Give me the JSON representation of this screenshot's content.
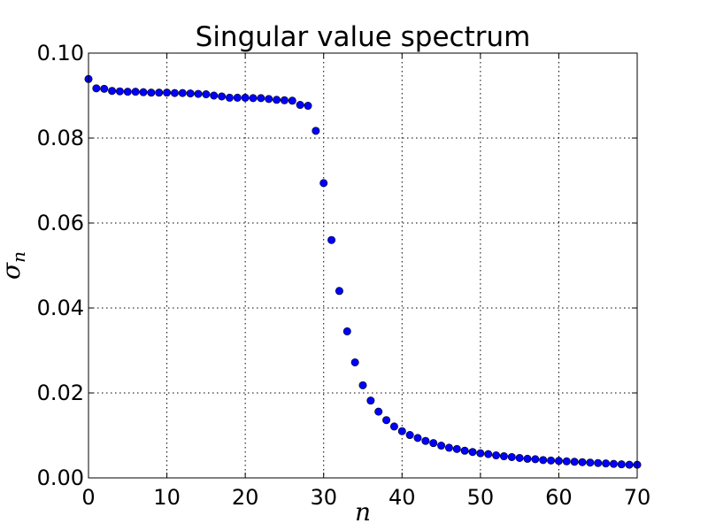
{
  "chart_data": {
    "type": "scatter",
    "title": "Singular value spectrum",
    "xlabel": "n",
    "ylabel": "σ",
    "ylabel_subscript": "n",
    "xlim": [
      0,
      70
    ],
    "ylim": [
      0,
      0.1
    ],
    "xticks": [
      0,
      10,
      20,
      30,
      40,
      50,
      60,
      70
    ],
    "yticks": [
      0,
      0.02,
      0.04,
      0.06,
      0.08,
      0.1
    ],
    "xtick_labels": [
      "0",
      "10",
      "20",
      "30",
      "40",
      "50",
      "60",
      "70"
    ],
    "ytick_labels": [
      "0.00",
      "0.02",
      "0.04",
      "0.06",
      "0.08",
      "0.10"
    ],
    "grid": true,
    "marker_color": "#0000ff",
    "marker_edge_color": "#000000",
    "series": [
      {
        "x": [
          0,
          1,
          2,
          3,
          4,
          5,
          6,
          7,
          8,
          9,
          10,
          11,
          12,
          13,
          14,
          15,
          16,
          17,
          18,
          19,
          20,
          21,
          22,
          23,
          24,
          25,
          26,
          27,
          28,
          29,
          30,
          31,
          32,
          33,
          34,
          35,
          36,
          37,
          38,
          39,
          40,
          41,
          42,
          43,
          44,
          45,
          46,
          47,
          48,
          49,
          50,
          51,
          52,
          53,
          54,
          55,
          56,
          57,
          58,
          59,
          60,
          61,
          62,
          63,
          64,
          65,
          66,
          67,
          68,
          69,
          70
        ],
        "values": [
          0.0939,
          0.0917,
          0.0916,
          0.0911,
          0.091,
          0.0909,
          0.0909,
          0.0908,
          0.0907,
          0.0907,
          0.0907,
          0.0906,
          0.0906,
          0.0905,
          0.0904,
          0.0903,
          0.09,
          0.0898,
          0.0895,
          0.0895,
          0.0895,
          0.0894,
          0.0894,
          0.0892,
          0.089,
          0.0889,
          0.0888,
          0.0878,
          0.0876,
          0.0817,
          0.0694,
          0.056,
          0.044,
          0.0345,
          0.0272,
          0.0218,
          0.0182,
          0.0156,
          0.0136,
          0.0121,
          0.011,
          0.0101,
          0.0094,
          0.0087,
          0.0082,
          0.0076,
          0.0071,
          0.0068,
          0.0064,
          0.0061,
          0.0058,
          0.0056,
          0.0053,
          0.0051,
          0.0049,
          0.0047,
          0.0045,
          0.0044,
          0.0042,
          0.0041,
          0.004,
          0.0039,
          0.0038,
          0.0037,
          0.0036,
          0.0035,
          0.0034,
          0.0033,
          0.0032,
          0.0031,
          0.0031
        ]
      }
    ]
  }
}
